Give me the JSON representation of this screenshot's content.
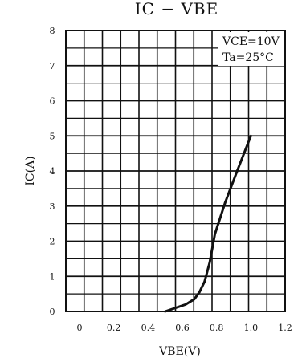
{
  "chart_data": {
    "type": "line",
    "title": "IC − VBE",
    "xlabel": "VBE(V)",
    "ylabel": "IC(A)",
    "x_ticks": [
      "0",
      "0.2",
      "0.4",
      "0.6",
      "0.8",
      "1.0",
      "1.2"
    ],
    "y_ticks": [
      "0",
      "1",
      "2",
      "3",
      "4",
      "5",
      "6",
      "7",
      "8"
    ],
    "xlim": [
      0,
      1.2
    ],
    "ylim": [
      0,
      8
    ],
    "grid": true,
    "annotations": [
      "VCE=10V",
      "Ta=25°C"
    ],
    "annotation_placement": "top-right",
    "series": [
      {
        "x": [
          0.5,
          0.56,
          0.62,
          0.67,
          0.7,
          0.73,
          0.76,
          0.79,
          0.85,
          0.92,
          1.0
        ],
        "y": [
          0.0,
          0.1,
          0.2,
          0.35,
          0.55,
          0.85,
          1.4,
          2.2,
          3.1,
          4.0,
          5.0
        ]
      }
    ],
    "colors": {
      "line": "#111111",
      "grid": "#111111",
      "background": "#ffffff"
    }
  }
}
